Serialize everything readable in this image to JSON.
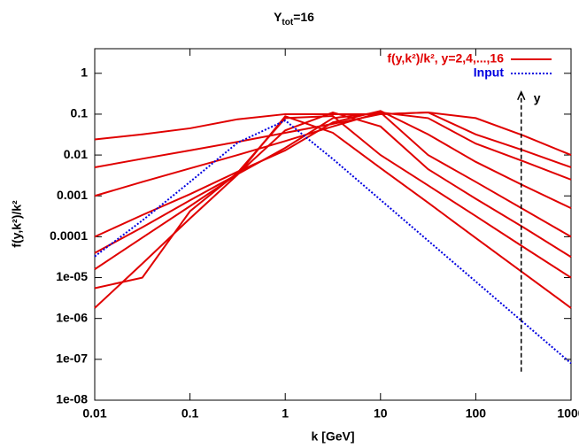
{
  "chart_data": {
    "type": "line",
    "title": {
      "main": "Y",
      "sub": "tot",
      "rest": "=16"
    },
    "xlabel": "k [GeV]",
    "ylabel": "f(y,k²)/k²",
    "log_x": true,
    "log_y": true,
    "xlim": [
      0.01,
      1000
    ],
    "ylim": [
      1e-08,
      4
    ],
    "xticks": [
      0.01,
      0.1,
      1,
      10,
      100,
      1000
    ],
    "yticks": [
      {
        "value": 1e-08,
        "label": "1e-08"
      },
      {
        "value": 1e-07,
        "label": "1e-07"
      },
      {
        "value": 1e-06,
        "label": "1e-06"
      },
      {
        "value": 1e-05,
        "label": "1e-05"
      },
      0.0001,
      0.001,
      0.01,
      0.1,
      1
    ],
    "legend": "top-right",
    "x": [
      0.01,
      0.0316,
      0.1,
      0.316,
      1,
      3.16,
      10,
      31.6,
      100,
      316,
      1000
    ],
    "series": [
      {
        "name": "f(y,k²)/k²,  y=2,4,...,16",
        "color": "#e00000",
        "dash": "solid",
        "values": [
          1.8e-06,
          2.2e-05,
          0.00028,
          0.0033,
          0.089,
          0.035,
          0.0048,
          0.00068,
          9.3e-05,
          1.3e-05,
          1.8e-06
        ]
      },
      {
        "color": "#e00000",
        "dash": "solid",
        "values": [
          5.5e-06,
          1e-05,
          0.00042,
          0.0037,
          0.08,
          0.09,
          0.01,
          0.0018,
          0.00032,
          5.6e-05,
          1e-05
        ]
      },
      {
        "color": "#e00000",
        "dash": "solid",
        "values": [
          1.6e-05,
          9.5e-05,
          0.00056,
          0.0034,
          0.04,
          0.11,
          0.05,
          0.0045,
          0.00085,
          0.00017,
          3.2e-05
        ]
      },
      {
        "color": "#e00000",
        "dash": "solid",
        "values": [
          4e-05,
          0.00017,
          0.00078,
          0.0034,
          0.015,
          0.08,
          0.11,
          0.01,
          0.0022,
          0.00047,
          0.0001
        ]
      },
      {
        "color": "#e00000",
        "dash": "solid",
        "values": [
          0.0001,
          0.00034,
          0.0011,
          0.0039,
          0.013,
          0.063,
          0.12,
          0.032,
          0.0068,
          0.0018,
          0.0005
        ]
      },
      {
        "color": "#e00000",
        "dash": "solid",
        "values": [
          0.001,
          0.0022,
          0.0047,
          0.01,
          0.022,
          0.05,
          0.11,
          0.08,
          0.019,
          0.007,
          0.0025
        ]
      },
      {
        "color": "#e00000",
        "dash": "solid",
        "values": [
          0.005,
          0.0081,
          0.013,
          0.021,
          0.035,
          0.058,
          0.1,
          0.11,
          0.032,
          0.013,
          0.005
        ]
      },
      {
        "color": "#e00000",
        "dash": "solid",
        "values": [
          0.024,
          0.032,
          0.045,
          0.075,
          0.1,
          0.1,
          0.1,
          0.11,
          0.08,
          0.03,
          0.01
        ]
      },
      {
        "name": "Input",
        "color": "#0000e0",
        "dash": "dotted",
        "values": [
          3.3e-05,
          0.00025,
          0.0022,
          0.02,
          0.07,
          0.008,
          0.0008,
          8e-05,
          8e-06,
          8e-07,
          8e-08
        ]
      }
    ],
    "arrow": {
      "x": 300,
      "y": [
        5e-08,
        0.35
      ],
      "label": "y"
    }
  }
}
